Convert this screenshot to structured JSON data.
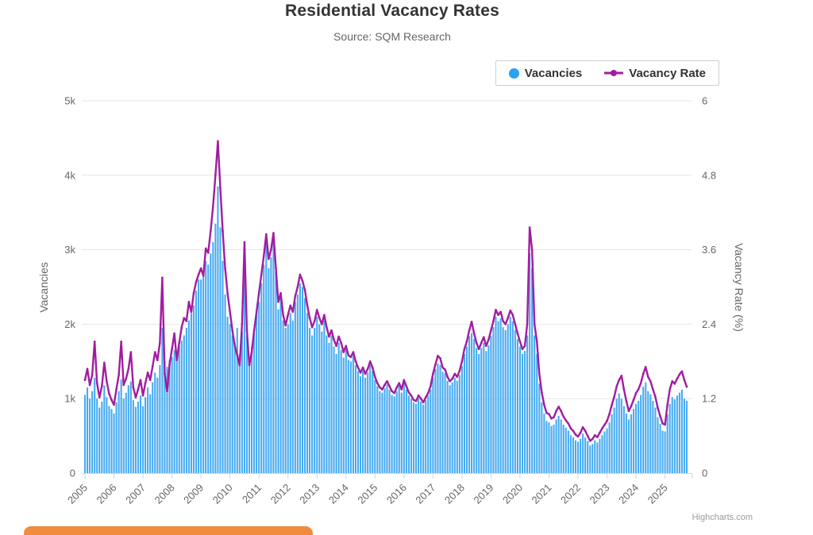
{
  "header": {
    "title": "Residential Vacancy Rates",
    "subtitle": "Source: SQM Research"
  },
  "legend": {
    "items": [
      {
        "label": "Vacancies",
        "marker": "circle-icon",
        "color": "#2BA2F2"
      },
      {
        "label": "Vacancy Rate",
        "marker": "line-dot-icon",
        "color": "#A21CA0"
      }
    ]
  },
  "credits": {
    "label": "Highcharts.com"
  },
  "overlay": {
    "orange_button_color": "#F18B3D"
  },
  "colors": {
    "bars": "#47ABF1",
    "line": "#A21CA0",
    "grid": "#e6e6e6",
    "axis_line": "#ccd6eb",
    "tick_label": "#666666"
  },
  "chart_data": {
    "type": "bar",
    "combo": "column+line",
    "title": "Residential Vacancy Rates",
    "subtitle": "Source: SQM Research",
    "grid": true,
    "legend_position": "top-right",
    "x": {
      "interval": "monthly",
      "start": "2005-01",
      "end": "2025-10",
      "tick_labels": [
        "2005",
        "2006",
        "2007",
        "2008",
        "2009",
        "2010",
        "2011",
        "2012",
        "2013",
        "2014",
        "2015",
        "2016",
        "2017",
        "2018",
        "2019",
        "2020",
        "2021",
        "2022",
        "2023",
        "2024",
        "2025"
      ],
      "label_rotation": -45
    },
    "y_left": {
      "title": "Vacancies",
      "max": 5000,
      "ticks": [
        0,
        1000,
        2000,
        3000,
        4000,
        5000
      ],
      "tick_labels": [
        "0",
        "1k",
        "2k",
        "3k",
        "4k",
        "5k"
      ]
    },
    "y_right": {
      "title": "Vacancy Rate (%)",
      "max": 6,
      "ticks": [
        0,
        1.2,
        2.4,
        3.6,
        4.8,
        6
      ],
      "tick_labels": [
        "0",
        "1.2",
        "2.4",
        "3.6",
        "4.8",
        "6"
      ]
    },
    "series": [
      {
        "name": "Vacancies",
        "type": "column",
        "axis": "left",
        "color": "#47ABF1",
        "values": [
          1050,
          1150,
          1000,
          1100,
          1280,
          1000,
          880,
          960,
          1180,
          1020,
          900,
          860,
          800,
          950,
          1100,
          1260,
          1000,
          1080,
          1180,
          1230,
          980,
          890,
          960,
          1040,
          900,
          1020,
          1150,
          1060,
          1220,
          1350,
          1280,
          1450,
          1950,
          1500,
          1430,
          1520,
          1560,
          1650,
          1600,
          1700,
          1780,
          1850,
          1950,
          2050,
          2150,
          2250,
          2450,
          2600,
          2600,
          2700,
          2850,
          2800,
          2950,
          3100,
          3350,
          3850,
          3300,
          2850,
          2400,
          2100,
          2000,
          1850,
          1750,
          1950,
          1600,
          1900,
          2750,
          1850,
          1550,
          1700,
          1900,
          2150,
          2300,
          2550,
          2800,
          3100,
          2750,
          2900,
          3100,
          2700,
          2200,
          2350,
          2050,
          1950,
          2000,
          2150,
          2050,
          2300,
          2400,
          2550,
          2500,
          2350,
          2150,
          1950,
          1850,
          1950,
          2100,
          2000,
          1900,
          2050,
          1850,
          1750,
          1850,
          1700,
          1600,
          1750,
          1650,
          1550,
          1650,
          1520,
          1500,
          1570,
          1450,
          1370,
          1300,
          1370,
          1280,
          1350,
          1450,
          1370,
          1250,
          1170,
          1100,
          1080,
          1140,
          1190,
          1120,
          1050,
          1030,
          1100,
          1170,
          1080,
          1200,
          1120,
          1040,
          1000,
          950,
          930,
          1000,
          960,
          920,
          980,
          1040,
          1120,
          1280,
          1400,
          1470,
          1450,
          1360,
          1340,
          1240,
          1180,
          1220,
          1280,
          1240,
          1320,
          1440,
          1600,
          1700,
          1840,
          1880,
          1800,
          1680,
          1600,
          1680,
          1750,
          1640,
          1720,
          1840,
          1960,
          2100,
          2040,
          2080,
          1960,
          1920,
          2000,
          2100,
          2040,
          1920,
          1800,
          1700,
          1600,
          1640,
          1850,
          2950,
          2750,
          1850,
          1600,
          1200,
          950,
          800,
          700,
          680,
          630,
          650,
          720,
          770,
          720,
          650,
          610,
          570,
          510,
          480,
          440,
          420,
          460,
          530,
          480,
          430,
          370,
          390,
          440,
          410,
          460,
          510,
          560,
          600,
          680,
          790,
          880,
          1000,
          1070,
          1000,
          900,
          800,
          720,
          790,
          860,
          930,
          970,
          1050,
          1160,
          1220,
          1100,
          1060,
          970,
          880,
          750,
          660,
          570,
          560,
          790,
          930,
          1020,
          990,
          1040,
          1080,
          1120,
          1000,
          970
        ]
      },
      {
        "name": "Vacancy Rate",
        "type": "line",
        "axis": "right",
        "color": "#A21CA0",
        "values": [
          1.5,
          1.68,
          1.42,
          1.58,
          2.12,
          1.45,
          1.22,
          1.4,
          1.78,
          1.48,
          1.28,
          1.18,
          1.1,
          1.35,
          1.58,
          2.12,
          1.42,
          1.52,
          1.68,
          1.95,
          1.38,
          1.22,
          1.35,
          1.5,
          1.25,
          1.45,
          1.62,
          1.5,
          1.72,
          1.95,
          1.82,
          2.1,
          3.15,
          1.6,
          1.32,
          1.75,
          2.0,
          2.25,
          1.82,
          2.1,
          2.35,
          2.5,
          2.45,
          2.76,
          2.6,
          2.9,
          3.08,
          3.2,
          3.3,
          3.18,
          3.62,
          3.55,
          3.9,
          4.3,
          4.8,
          5.35,
          4.6,
          3.9,
          3.3,
          2.9,
          2.6,
          2.3,
          2.05,
          1.9,
          1.74,
          2.4,
          3.72,
          2.3,
          1.74,
          1.95,
          2.3,
          2.6,
          2.9,
          3.2,
          3.5,
          3.85,
          3.45,
          3.6,
          3.87,
          3.3,
          2.76,
          2.9,
          2.55,
          2.38,
          2.55,
          2.7,
          2.6,
          2.85,
          3.0,
          3.2,
          3.1,
          2.95,
          2.7,
          2.5,
          2.35,
          2.45,
          2.63,
          2.5,
          2.4,
          2.55,
          2.35,
          2.2,
          2.3,
          2.15,
          2.05,
          2.2,
          2.1,
          1.95,
          2.05,
          1.9,
          1.87,
          1.95,
          1.8,
          1.7,
          1.62,
          1.7,
          1.6,
          1.68,
          1.8,
          1.7,
          1.55,
          1.45,
          1.38,
          1.35,
          1.42,
          1.48,
          1.4,
          1.32,
          1.29,
          1.38,
          1.45,
          1.35,
          1.5,
          1.4,
          1.3,
          1.25,
          1.18,
          1.16,
          1.25,
          1.2,
          1.14,
          1.22,
          1.29,
          1.4,
          1.6,
          1.75,
          1.89,
          1.85,
          1.7,
          1.67,
          1.55,
          1.48,
          1.52,
          1.6,
          1.55,
          1.65,
          1.8,
          2.0,
          2.12,
          2.3,
          2.44,
          2.25,
          2.1,
          2.0,
          2.1,
          2.19,
          2.05,
          2.15,
          2.3,
          2.45,
          2.63,
          2.55,
          2.6,
          2.45,
          2.4,
          2.5,
          2.62,
          2.55,
          2.4,
          2.25,
          2.12,
          2.0,
          2.05,
          2.4,
          3.96,
          3.6,
          2.4,
          2.12,
          1.6,
          1.3,
          1.1,
          0.97,
          0.95,
          0.88,
          0.9,
          1.0,
          1.07,
          1.0,
          0.91,
          0.85,
          0.8,
          0.72,
          0.68,
          0.62,
          0.59,
          0.65,
          0.74,
          0.68,
          0.6,
          0.52,
          0.55,
          0.61,
          0.58,
          0.65,
          0.72,
          0.78,
          0.84,
          0.95,
          1.1,
          1.23,
          1.4,
          1.5,
          1.57,
          1.35,
          1.16,
          1.0,
          1.08,
          1.18,
          1.29,
          1.35,
          1.45,
          1.6,
          1.71,
          1.55,
          1.48,
          1.35,
          1.23,
          1.05,
          0.92,
          0.8,
          0.78,
          1.1,
          1.35,
          1.48,
          1.44,
          1.52,
          1.59,
          1.64,
          1.5,
          1.39
        ]
      }
    ]
  }
}
